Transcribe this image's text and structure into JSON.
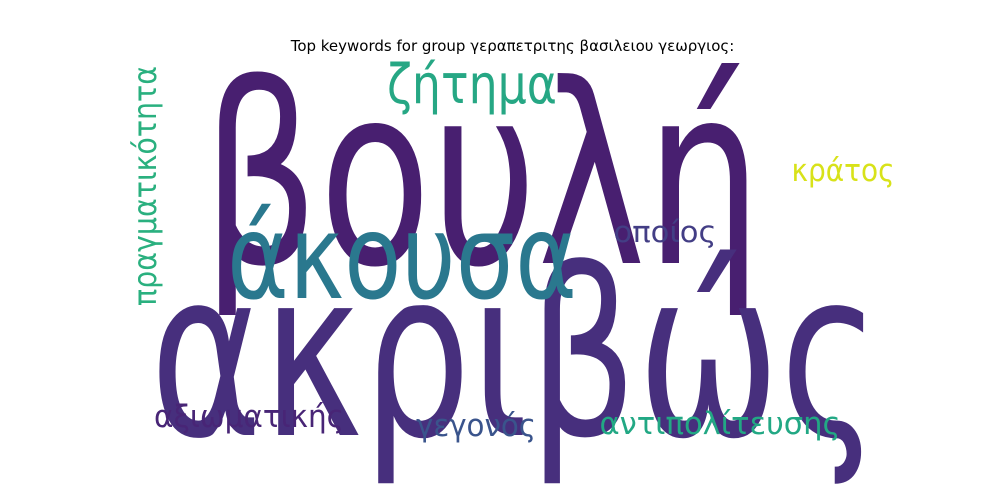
{
  "title": "Top keywords for group γεραπετριτης βασιλειου γεωργιος:",
  "words": [
    {
      "text": "βουλή",
      "color": "#481f70"
    },
    {
      "text": "ακριβώς",
      "color": "#472f7d"
    },
    {
      "text": "άκουσα",
      "color": "#2a788e"
    },
    {
      "text": "ζήτημα",
      "color": "#26a784"
    },
    {
      "text": "πραγματικότητα",
      "color": "#2ab07f"
    },
    {
      "text": "κράτος",
      "color": "#d8e219"
    },
    {
      "text": "οποίος",
      "color": "#433e85"
    },
    {
      "text": "αξιωματικής",
      "color": "#482576"
    },
    {
      "text": "γεγονός",
      "color": "#3a548c"
    },
    {
      "text": "αντιπολίτευσης",
      "color": "#22a884"
    }
  ]
}
